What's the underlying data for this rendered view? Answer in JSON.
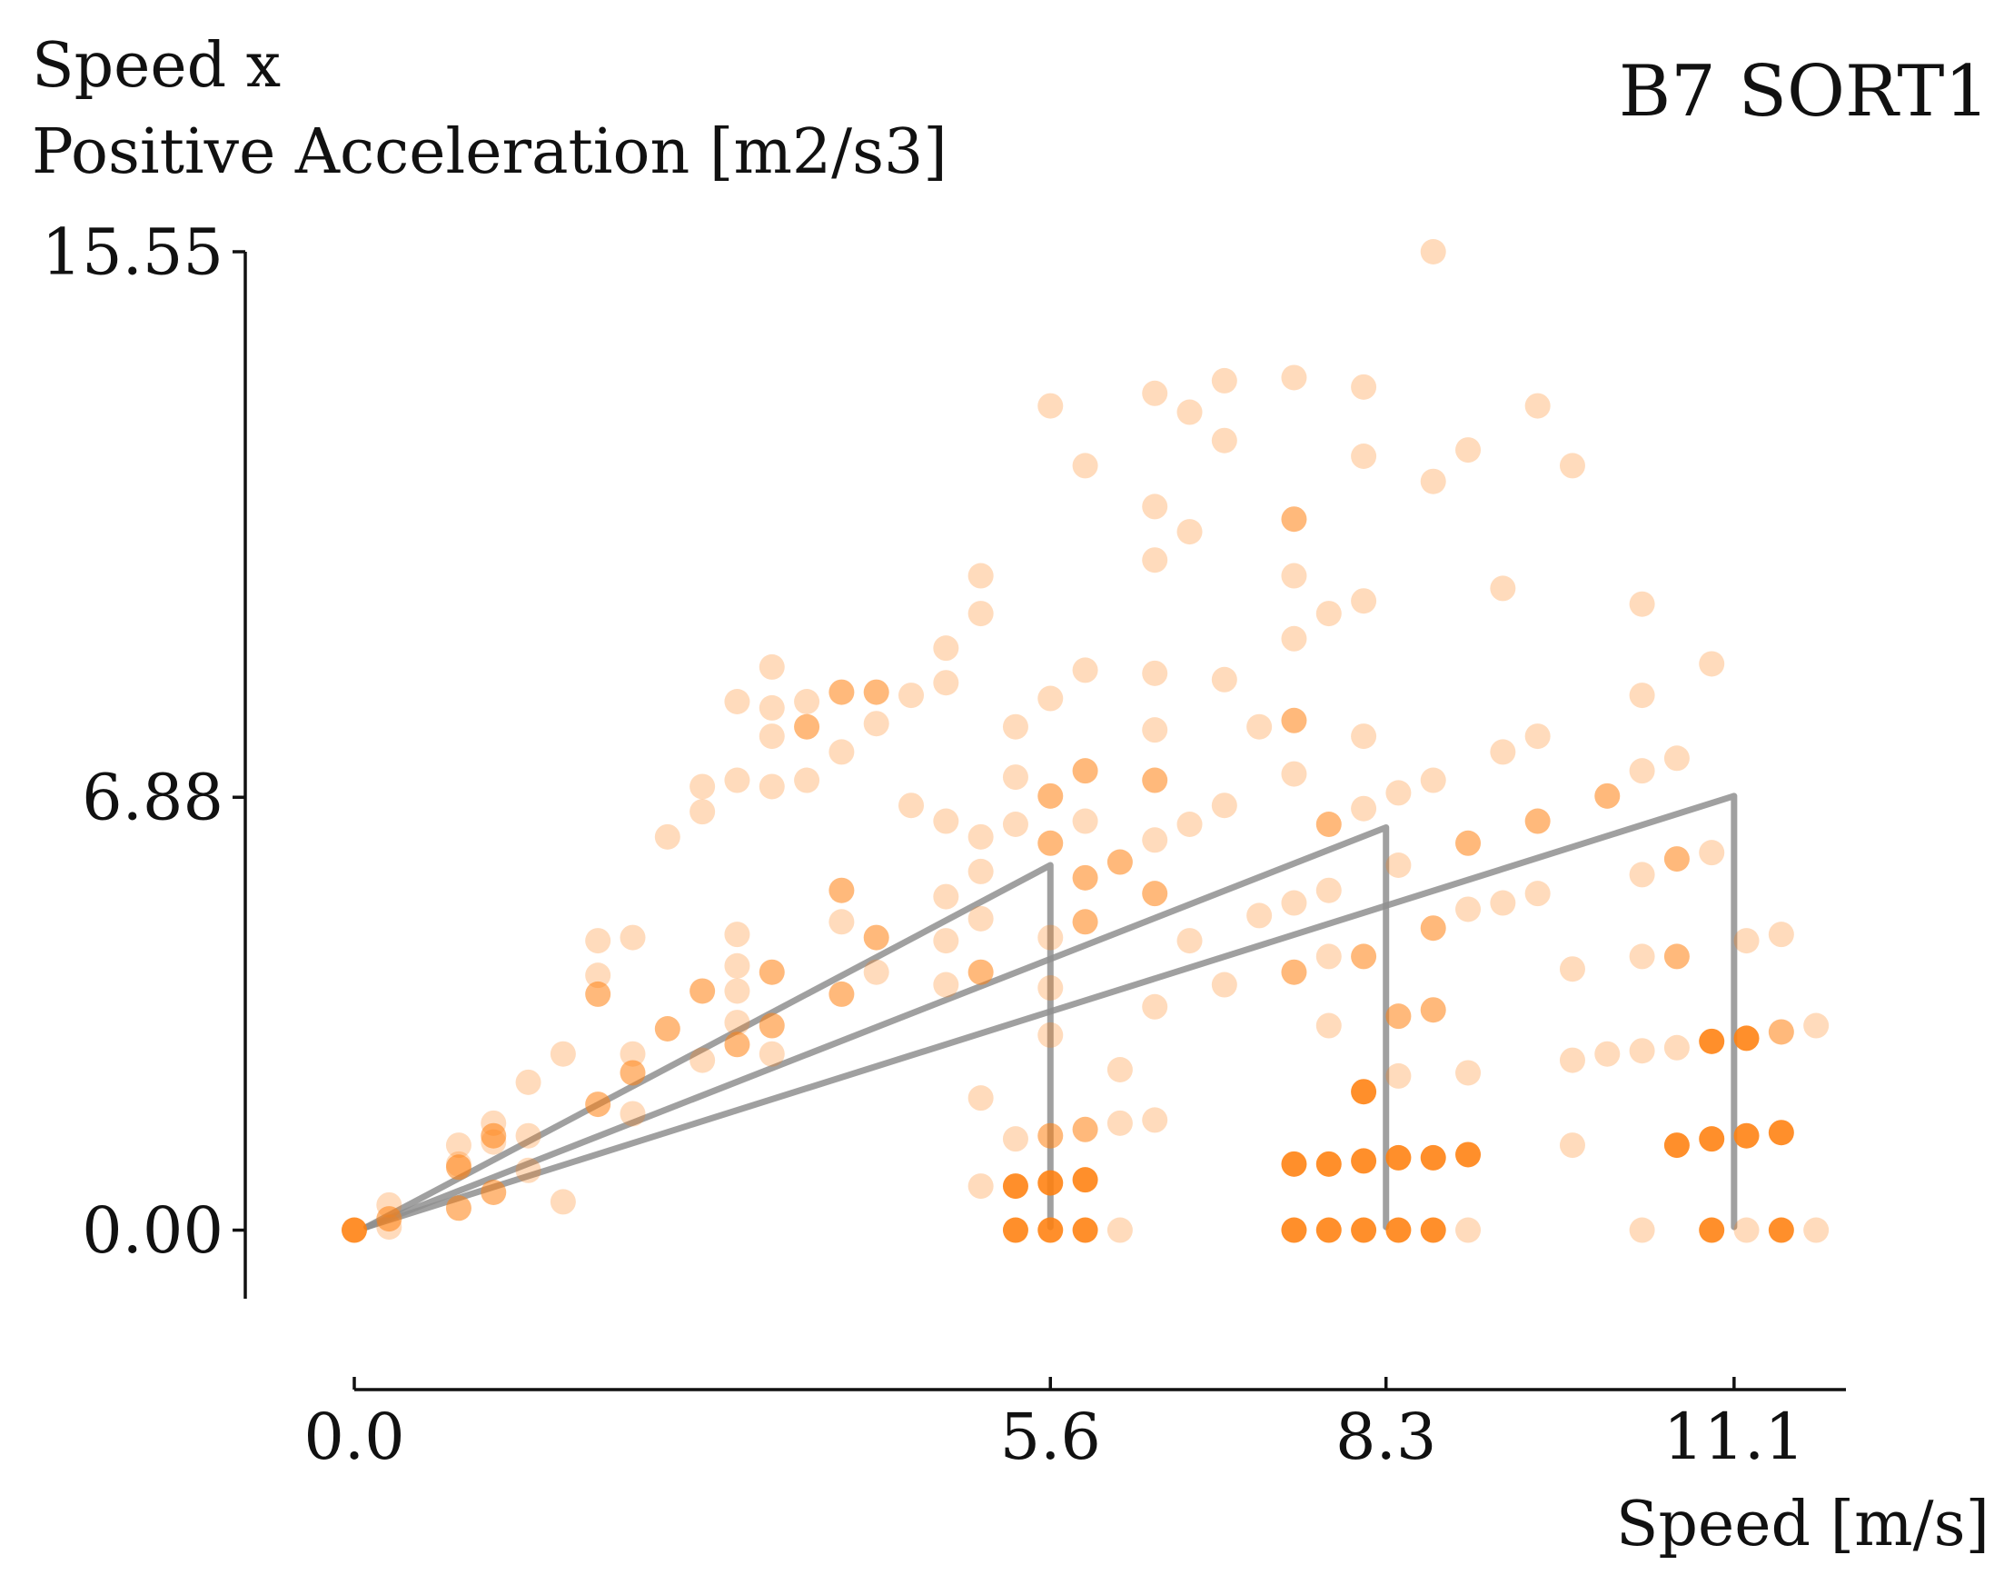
{
  "chart_data": {
    "type": "scatter",
    "title": "B7 SORT1",
    "ylabel_lines": [
      "Speed x",
      "Positive Acceleration [m2/s3]"
    ],
    "xlabel": "Speed [m/s]",
    "xlim": [
      0,
      12.0
    ],
    "ylim": [
      -1.09,
      15.55
    ],
    "x_ticks": [
      0.0,
      5.6,
      8.3,
      11.1
    ],
    "x_tick_labels": [
      "0.0",
      "5.6",
      "8.3",
      "11.1"
    ],
    "y_ticks": [
      0.0,
      6.88,
      15.55
    ],
    "y_tick_labels": [
      "0.00",
      "6.88",
      "15.55"
    ],
    "grid": false,
    "point_color": "#ff7f0e",
    "guide_color": "#8f8f8f",
    "guide_lines": [
      {
        "name": "guide-5.6",
        "points": [
          [
            0.1,
            0.05
          ],
          [
            5.6,
            5.8
          ],
          [
            5.6,
            0.05
          ]
        ]
      },
      {
        "name": "guide-8.3",
        "points": [
          [
            0.1,
            0.05
          ],
          [
            8.3,
            6.4
          ],
          [
            8.3,
            0.05
          ]
        ]
      },
      {
        "name": "guide-11.1",
        "points": [
          [
            0.1,
            0.05
          ],
          [
            11.1,
            6.9
          ],
          [
            11.1,
            0.05
          ]
        ]
      }
    ],
    "series": [
      {
        "name": "light",
        "opacity": 0.28,
        "points": [
          [
            0.28,
            0.4
          ],
          [
            0.28,
            0.05
          ],
          [
            0.84,
            1.35
          ],
          [
            0.84,
            1.05
          ],
          [
            1.12,
            1.7
          ],
          [
            1.12,
            1.4
          ],
          [
            1.4,
            2.35
          ],
          [
            1.4,
            1.5
          ],
          [
            1.4,
            0.95
          ],
          [
            1.68,
            2.8
          ],
          [
            1.68,
            0.45
          ],
          [
            1.96,
            4.6
          ],
          [
            1.96,
            4.05
          ],
          [
            2.24,
            4.65
          ],
          [
            2.24,
            2.8
          ],
          [
            2.24,
            1.85
          ],
          [
            2.52,
            6.25
          ],
          [
            2.8,
            7.05
          ],
          [
            2.8,
            6.65
          ],
          [
            2.8,
            2.7
          ],
          [
            3.08,
            8.4
          ],
          [
            3.08,
            7.15
          ],
          [
            3.08,
            4.7
          ],
          [
            3.08,
            4.2
          ],
          [
            3.08,
            3.8
          ],
          [
            3.08,
            3.3
          ],
          [
            3.36,
            8.95
          ],
          [
            3.36,
            8.3
          ],
          [
            3.36,
            7.85
          ],
          [
            3.36,
            7.05
          ],
          [
            3.36,
            2.8
          ],
          [
            3.64,
            8.4
          ],
          [
            3.64,
            7.15
          ],
          [
            3.92,
            7.6
          ],
          [
            3.92,
            4.9
          ],
          [
            4.2,
            8.05
          ],
          [
            4.2,
            4.1
          ],
          [
            4.48,
            8.5
          ],
          [
            4.48,
            6.75
          ],
          [
            4.76,
            9.25
          ],
          [
            4.76,
            8.7
          ],
          [
            4.76,
            6.5
          ],
          [
            4.76,
            5.3
          ],
          [
            4.76,
            4.6
          ],
          [
            4.76,
            3.9
          ],
          [
            5.04,
            10.4
          ],
          [
            5.04,
            9.8
          ],
          [
            5.04,
            6.25
          ],
          [
            5.04,
            5.7
          ],
          [
            5.04,
            4.95
          ],
          [
            5.04,
            2.1
          ],
          [
            5.04,
            0.7
          ],
          [
            5.32,
            8.0
          ],
          [
            5.32,
            7.2
          ],
          [
            5.32,
            6.45
          ],
          [
            5.32,
            1.45
          ],
          [
            5.6,
            13.1
          ],
          [
            5.6,
            8.45
          ],
          [
            5.6,
            4.65
          ],
          [
            5.6,
            3.85
          ],
          [
            5.6,
            3.1
          ],
          [
            5.88,
            12.15
          ],
          [
            5.88,
            8.9
          ],
          [
            5.88,
            6.5
          ],
          [
            6.16,
            2.55
          ],
          [
            6.16,
            1.7
          ],
          [
            6.16,
            0.0
          ],
          [
            6.44,
            13.3
          ],
          [
            6.44,
            11.5
          ],
          [
            6.44,
            10.65
          ],
          [
            6.44,
            8.85
          ],
          [
            6.44,
            7.95
          ],
          [
            6.44,
            6.2
          ],
          [
            6.44,
            3.55
          ],
          [
            6.44,
            1.75
          ],
          [
            6.72,
            13.0
          ],
          [
            6.72,
            11.1
          ],
          [
            6.72,
            6.45
          ],
          [
            6.72,
            4.6
          ],
          [
            7.0,
            13.5
          ],
          [
            7.0,
            12.55
          ],
          [
            7.0,
            8.75
          ],
          [
            7.0,
            6.75
          ],
          [
            7.0,
            3.9
          ],
          [
            7.28,
            8.0
          ],
          [
            7.28,
            5.0
          ],
          [
            7.56,
            13.55
          ],
          [
            7.56,
            10.4
          ],
          [
            7.56,
            9.4
          ],
          [
            7.56,
            7.25
          ],
          [
            7.56,
            5.2
          ],
          [
            7.84,
            9.8
          ],
          [
            7.84,
            5.4
          ],
          [
            7.84,
            4.35
          ],
          [
            7.84,
            3.25
          ],
          [
            8.12,
            13.4
          ],
          [
            8.12,
            12.3
          ],
          [
            8.12,
            10.0
          ],
          [
            8.12,
            7.85
          ],
          [
            8.12,
            6.7
          ],
          [
            8.4,
            6.95
          ],
          [
            8.4,
            5.8
          ],
          [
            8.4,
            2.45
          ],
          [
            8.68,
            15.55
          ],
          [
            8.68,
            11.9
          ],
          [
            8.68,
            7.15
          ],
          [
            8.96,
            12.4
          ],
          [
            8.96,
            5.1
          ],
          [
            8.96,
            2.5
          ],
          [
            8.96,
            0.0
          ],
          [
            9.24,
            10.2
          ],
          [
            9.24,
            7.6
          ],
          [
            9.24,
            5.2
          ],
          [
            9.52,
            13.1
          ],
          [
            9.52,
            7.85
          ],
          [
            9.52,
            5.35
          ],
          [
            9.8,
            12.15
          ],
          [
            9.8,
            4.15
          ],
          [
            9.8,
            2.7
          ],
          [
            9.8,
            1.35
          ],
          [
            10.08,
            2.8
          ],
          [
            10.36,
            9.95
          ],
          [
            10.36,
            8.5
          ],
          [
            10.36,
            7.3
          ],
          [
            10.36,
            5.65
          ],
          [
            10.36,
            4.35
          ],
          [
            10.36,
            2.85
          ],
          [
            10.36,
            0.0
          ],
          [
            10.64,
            7.5
          ],
          [
            10.64,
            2.9
          ],
          [
            10.92,
            9.0
          ],
          [
            10.92,
            6.0
          ],
          [
            11.2,
            4.6
          ],
          [
            11.2,
            0.0
          ],
          [
            11.48,
            4.7
          ],
          [
            11.76,
            3.25
          ],
          [
            11.76,
            0.0
          ]
        ]
      },
      {
        "name": "medium",
        "opacity": 0.55,
        "points": [
          [
            0.28,
            0.18
          ],
          [
            0.84,
            0.35
          ],
          [
            0.84,
            1.0
          ],
          [
            1.12,
            0.6
          ],
          [
            1.12,
            1.5
          ],
          [
            1.96,
            3.75
          ],
          [
            1.96,
            2.0
          ],
          [
            2.24,
            2.5
          ],
          [
            2.52,
            3.2
          ],
          [
            2.8,
            3.8
          ],
          [
            3.08,
            2.95
          ],
          [
            3.36,
            4.1
          ],
          [
            3.36,
            3.25
          ],
          [
            3.64,
            8.0
          ],
          [
            3.92,
            8.55
          ],
          [
            3.92,
            5.4
          ],
          [
            3.92,
            3.75
          ],
          [
            4.2,
            8.55
          ],
          [
            4.2,
            4.65
          ],
          [
            5.04,
            4.1
          ],
          [
            5.6,
            6.9
          ],
          [
            5.6,
            6.15
          ],
          [
            5.6,
            1.5
          ],
          [
            5.88,
            7.3
          ],
          [
            5.88,
            5.6
          ],
          [
            5.88,
            4.9
          ],
          [
            5.88,
            1.6
          ],
          [
            6.16,
            5.85
          ],
          [
            6.44,
            7.15
          ],
          [
            6.44,
            5.35
          ],
          [
            7.56,
            11.3
          ],
          [
            7.56,
            8.1
          ],
          [
            7.56,
            4.1
          ],
          [
            7.84,
            6.45
          ],
          [
            8.12,
            4.35
          ],
          [
            8.4,
            3.4
          ],
          [
            8.68,
            4.8
          ],
          [
            8.68,
            3.5
          ],
          [
            8.96,
            6.15
          ],
          [
            9.52,
            6.5
          ],
          [
            10.08,
            6.9
          ],
          [
            10.64,
            5.9
          ],
          [
            10.64,
            4.35
          ],
          [
            11.48,
            3.15
          ]
        ]
      },
      {
        "name": "dark",
        "opacity": 0.88,
        "points": [
          [
            0.0,
            0.0
          ],
          [
            5.32,
            0.0
          ],
          [
            5.32,
            0.7
          ],
          [
            5.6,
            0.0
          ],
          [
            5.6,
            0.75
          ],
          [
            5.88,
            0.0
          ],
          [
            5.88,
            0.8
          ],
          [
            7.56,
            0.0
          ],
          [
            7.84,
            0.0
          ],
          [
            8.12,
            0.0
          ],
          [
            8.12,
            2.2
          ],
          [
            8.4,
            0.0
          ],
          [
            8.68,
            0.0
          ],
          [
            10.92,
            0.0
          ],
          [
            11.48,
            0.0
          ],
          [
            7.56,
            1.05
          ],
          [
            7.84,
            1.05
          ],
          [
            8.12,
            1.1
          ],
          [
            8.4,
            1.15
          ],
          [
            8.68,
            1.15
          ],
          [
            8.96,
            1.2
          ],
          [
            10.64,
            1.35
          ],
          [
            10.92,
            1.45
          ],
          [
            10.92,
            3.0
          ],
          [
            11.2,
            1.5
          ],
          [
            11.2,
            3.05
          ],
          [
            11.48,
            1.55
          ]
        ]
      }
    ]
  }
}
